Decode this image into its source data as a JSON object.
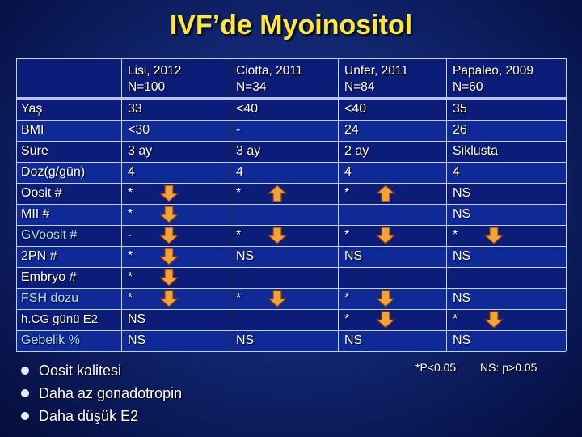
{
  "title": "IVF’de Myoinositol",
  "columns": [
    {
      "name": "Lisi, 2012",
      "n": "N=100"
    },
    {
      "name": "Ciotta, 2011",
      "n": "N=34"
    },
    {
      "name": "Unfer, 2011",
      "n": "N=84"
    },
    {
      "name": "Papaleo, 2009",
      "n": "N=60"
    }
  ],
  "rows": [
    {
      "label": "Yaş",
      "cells": [
        "33",
        "<40",
        "<40",
        "35"
      ]
    },
    {
      "label": "BMI",
      "cells": [
        "<30",
        "-",
        "24",
        "26"
      ]
    },
    {
      "label": "Süre",
      "cells": [
        "3 ay",
        "3 ay",
        "2 ay",
        "Siklusta"
      ]
    },
    {
      "label": "Doz(g/gün)",
      "cells": [
        "4",
        "4",
        "4",
        "4"
      ]
    },
    {
      "label": "Oosit #",
      "cells": [
        "*",
        "*",
        "*",
        "NS"
      ]
    },
    {
      "label": "MII #",
      "cells": [
        "*",
        "",
        "",
        "NS"
      ]
    },
    {
      "label": "GVoosit #",
      "cells": [
        "-",
        "*",
        "*",
        "*"
      ]
    },
    {
      "label": "2PN #",
      "cells": [
        "*",
        "NS",
        "NS",
        "NS"
      ]
    },
    {
      "label": "Embryo  #",
      "cells": [
        "*",
        "",
        "",
        ""
      ]
    },
    {
      "label": "FSH dozu",
      "cells": [
        "*",
        "*",
        "*",
        "NS"
      ]
    },
    {
      "label": "h.CG günü E2",
      "cells": [
        "NS",
        "",
        "*",
        "*"
      ]
    },
    {
      "label": "Gebelik %",
      "cells": [
        "NS",
        "NS",
        "NS",
        "NS"
      ]
    }
  ],
  "arrows": [
    {
      "row": "Oosit #",
      "column": "Lisi, 2012",
      "direction": "down"
    },
    {
      "row": "Oosit #",
      "column": "Ciotta, 2011",
      "direction": "up"
    },
    {
      "row": "Oosit #",
      "column": "Unfer, 2011",
      "direction": "up"
    },
    {
      "row": "MII #",
      "column": "Lisi, 2012",
      "direction": "down"
    },
    {
      "row": "GVoosit #",
      "column": "Lisi, 2012",
      "direction": "down"
    },
    {
      "row": "GVoosit #",
      "column": "Ciotta, 2011",
      "direction": "down"
    },
    {
      "row": "GVoosit #",
      "column": "Unfer, 2011",
      "direction": "down"
    },
    {
      "row": "GVoosit #",
      "column": "Papaleo, 2009",
      "direction": "down"
    },
    {
      "row": "2PN #",
      "column": "Lisi, 2012",
      "direction": "down"
    },
    {
      "row": "Embryo  #",
      "column": "Lisi, 2012",
      "direction": "down"
    },
    {
      "row": "FSH dozu",
      "column": "Lisi, 2012",
      "direction": "down"
    },
    {
      "row": "FSH dozu",
      "column": "Ciotta, 2011",
      "direction": "down"
    },
    {
      "row": "FSH dozu",
      "column": "Unfer, 2011",
      "direction": "down"
    },
    {
      "row": "h.CG günü E2",
      "column": "Unfer, 2011",
      "direction": "down"
    },
    {
      "row": "h.CG günü E2",
      "column": "Papaleo, 2009",
      "direction": "down"
    }
  ],
  "bullets": [
    "Oosit kalitesi",
    "Daha az gonadotropin",
    "Daha düşük E2"
  ],
  "notes": {
    "significant": "*P<0.05",
    "nonsignificant": "NS: p>0.05"
  },
  "colors": {
    "title": "#ffe83a",
    "background": "#122672",
    "table_row": "#0b1d78",
    "table_row_alt": "#0f2a96",
    "arrow_fill": "#f2a23a",
    "arrow_stroke": "#8a3a05",
    "label_cyan": "#9fe3ff"
  }
}
